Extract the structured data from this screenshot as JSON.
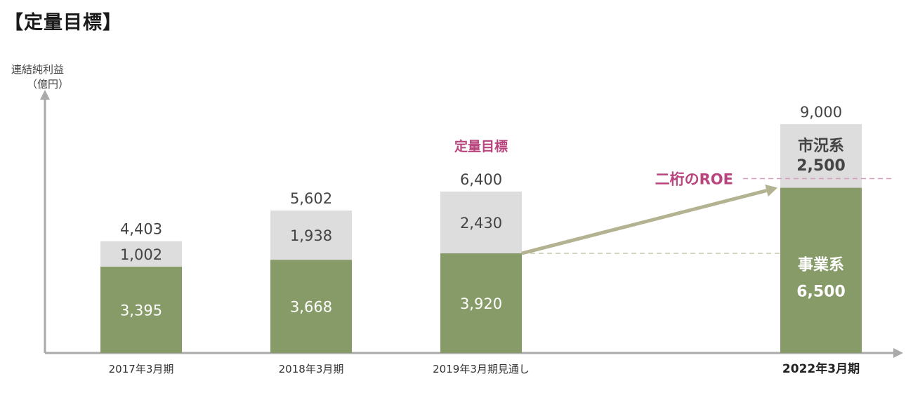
{
  "title": "【定量目標】",
  "chart_data": {
    "type": "bar",
    "stacked": true,
    "ylabel": [
      "連結純利益",
      "（億円）"
    ],
    "categories": [
      "2017年3月期",
      "2018年3月期",
      "2019年3月期見通し",
      "2022年3月期"
    ],
    "series": [
      {
        "name": "事業系",
        "values": [
          3395,
          3668,
          3920,
          6500
        ]
      },
      {
        "name": "市況系",
        "values": [
          1002,
          1938,
          2430,
          2500
        ]
      }
    ],
    "totals": [
      4403,
      5602,
      6400,
      9000
    ],
    "value_labels": {
      "bottom": [
        "3,395",
        "3,668",
        "3,920",
        "6,500"
      ],
      "top": [
        "1,002",
        "1,938",
        "2,430",
        "2,500"
      ],
      "totals": [
        "4,403",
        "5,602",
        "6,400",
        "9,000"
      ]
    },
    "annotations": {
      "target_label": "定量目標",
      "roe_label": "二桁のROE"
    },
    "colors": {
      "business": "#869b67",
      "market": "#dddddd",
      "accent": "#b8457d",
      "arrow": "#b3b391"
    }
  }
}
